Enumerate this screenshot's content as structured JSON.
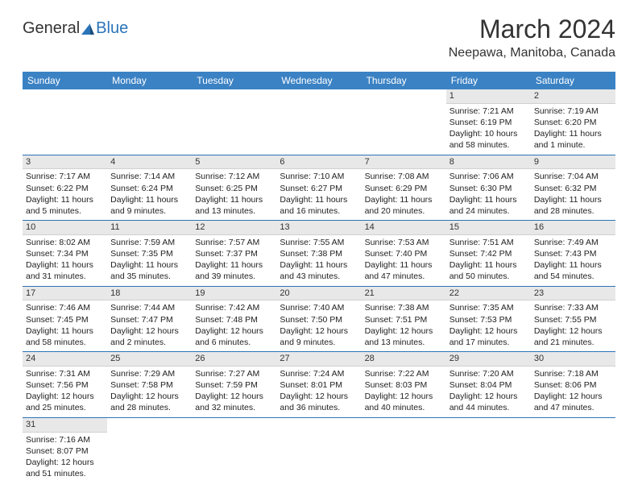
{
  "logo": {
    "general": "General",
    "blue": "Blue"
  },
  "title": "March 2024",
  "location": "Neepawa, Manitoba, Canada",
  "colors": {
    "headerBg": "#3b82c4",
    "headerText": "#ffffff",
    "dayNumBg": "#e8e8e8",
    "weekSep": "#2b74b8",
    "text": "#222222"
  },
  "dayNames": [
    "Sunday",
    "Monday",
    "Tuesday",
    "Wednesday",
    "Thursday",
    "Friday",
    "Saturday"
  ],
  "weeks": [
    [
      {
        "n": "",
        "lines": []
      },
      {
        "n": "",
        "lines": []
      },
      {
        "n": "",
        "lines": []
      },
      {
        "n": "",
        "lines": []
      },
      {
        "n": "",
        "lines": []
      },
      {
        "n": "1",
        "lines": [
          "Sunrise: 7:21 AM",
          "Sunset: 6:19 PM",
          "Daylight: 10 hours",
          "and 58 minutes."
        ]
      },
      {
        "n": "2",
        "lines": [
          "Sunrise: 7:19 AM",
          "Sunset: 6:20 PM",
          "Daylight: 11 hours",
          "and 1 minute."
        ]
      }
    ],
    [
      {
        "n": "3",
        "lines": [
          "Sunrise: 7:17 AM",
          "Sunset: 6:22 PM",
          "Daylight: 11 hours",
          "and 5 minutes."
        ]
      },
      {
        "n": "4",
        "lines": [
          "Sunrise: 7:14 AM",
          "Sunset: 6:24 PM",
          "Daylight: 11 hours",
          "and 9 minutes."
        ]
      },
      {
        "n": "5",
        "lines": [
          "Sunrise: 7:12 AM",
          "Sunset: 6:25 PM",
          "Daylight: 11 hours",
          "and 13 minutes."
        ]
      },
      {
        "n": "6",
        "lines": [
          "Sunrise: 7:10 AM",
          "Sunset: 6:27 PM",
          "Daylight: 11 hours",
          "and 16 minutes."
        ]
      },
      {
        "n": "7",
        "lines": [
          "Sunrise: 7:08 AM",
          "Sunset: 6:29 PM",
          "Daylight: 11 hours",
          "and 20 minutes."
        ]
      },
      {
        "n": "8",
        "lines": [
          "Sunrise: 7:06 AM",
          "Sunset: 6:30 PM",
          "Daylight: 11 hours",
          "and 24 minutes."
        ]
      },
      {
        "n": "9",
        "lines": [
          "Sunrise: 7:04 AM",
          "Sunset: 6:32 PM",
          "Daylight: 11 hours",
          "and 28 minutes."
        ]
      }
    ],
    [
      {
        "n": "10",
        "lines": [
          "Sunrise: 8:02 AM",
          "Sunset: 7:34 PM",
          "Daylight: 11 hours",
          "and 31 minutes."
        ]
      },
      {
        "n": "11",
        "lines": [
          "Sunrise: 7:59 AM",
          "Sunset: 7:35 PM",
          "Daylight: 11 hours",
          "and 35 minutes."
        ]
      },
      {
        "n": "12",
        "lines": [
          "Sunrise: 7:57 AM",
          "Sunset: 7:37 PM",
          "Daylight: 11 hours",
          "and 39 minutes."
        ]
      },
      {
        "n": "13",
        "lines": [
          "Sunrise: 7:55 AM",
          "Sunset: 7:38 PM",
          "Daylight: 11 hours",
          "and 43 minutes."
        ]
      },
      {
        "n": "14",
        "lines": [
          "Sunrise: 7:53 AM",
          "Sunset: 7:40 PM",
          "Daylight: 11 hours",
          "and 47 minutes."
        ]
      },
      {
        "n": "15",
        "lines": [
          "Sunrise: 7:51 AM",
          "Sunset: 7:42 PM",
          "Daylight: 11 hours",
          "and 50 minutes."
        ]
      },
      {
        "n": "16",
        "lines": [
          "Sunrise: 7:49 AM",
          "Sunset: 7:43 PM",
          "Daylight: 11 hours",
          "and 54 minutes."
        ]
      }
    ],
    [
      {
        "n": "17",
        "lines": [
          "Sunrise: 7:46 AM",
          "Sunset: 7:45 PM",
          "Daylight: 11 hours",
          "and 58 minutes."
        ]
      },
      {
        "n": "18",
        "lines": [
          "Sunrise: 7:44 AM",
          "Sunset: 7:47 PM",
          "Daylight: 12 hours",
          "and 2 minutes."
        ]
      },
      {
        "n": "19",
        "lines": [
          "Sunrise: 7:42 AM",
          "Sunset: 7:48 PM",
          "Daylight: 12 hours",
          "and 6 minutes."
        ]
      },
      {
        "n": "20",
        "lines": [
          "Sunrise: 7:40 AM",
          "Sunset: 7:50 PM",
          "Daylight: 12 hours",
          "and 9 minutes."
        ]
      },
      {
        "n": "21",
        "lines": [
          "Sunrise: 7:38 AM",
          "Sunset: 7:51 PM",
          "Daylight: 12 hours",
          "and 13 minutes."
        ]
      },
      {
        "n": "22",
        "lines": [
          "Sunrise: 7:35 AM",
          "Sunset: 7:53 PM",
          "Daylight: 12 hours",
          "and 17 minutes."
        ]
      },
      {
        "n": "23",
        "lines": [
          "Sunrise: 7:33 AM",
          "Sunset: 7:55 PM",
          "Daylight: 12 hours",
          "and 21 minutes."
        ]
      }
    ],
    [
      {
        "n": "24",
        "lines": [
          "Sunrise: 7:31 AM",
          "Sunset: 7:56 PM",
          "Daylight: 12 hours",
          "and 25 minutes."
        ]
      },
      {
        "n": "25",
        "lines": [
          "Sunrise: 7:29 AM",
          "Sunset: 7:58 PM",
          "Daylight: 12 hours",
          "and 28 minutes."
        ]
      },
      {
        "n": "26",
        "lines": [
          "Sunrise: 7:27 AM",
          "Sunset: 7:59 PM",
          "Daylight: 12 hours",
          "and 32 minutes."
        ]
      },
      {
        "n": "27",
        "lines": [
          "Sunrise: 7:24 AM",
          "Sunset: 8:01 PM",
          "Daylight: 12 hours",
          "and 36 minutes."
        ]
      },
      {
        "n": "28",
        "lines": [
          "Sunrise: 7:22 AM",
          "Sunset: 8:03 PM",
          "Daylight: 12 hours",
          "and 40 minutes."
        ]
      },
      {
        "n": "29",
        "lines": [
          "Sunrise: 7:20 AM",
          "Sunset: 8:04 PM",
          "Daylight: 12 hours",
          "and 44 minutes."
        ]
      },
      {
        "n": "30",
        "lines": [
          "Sunrise: 7:18 AM",
          "Sunset: 8:06 PM",
          "Daylight: 12 hours",
          "and 47 minutes."
        ]
      }
    ],
    [
      {
        "n": "31",
        "lines": [
          "Sunrise: 7:16 AM",
          "Sunset: 8:07 PM",
          "Daylight: 12 hours",
          "and 51 minutes."
        ]
      },
      {
        "n": "",
        "lines": []
      },
      {
        "n": "",
        "lines": []
      },
      {
        "n": "",
        "lines": []
      },
      {
        "n": "",
        "lines": []
      },
      {
        "n": "",
        "lines": []
      },
      {
        "n": "",
        "lines": []
      }
    ]
  ]
}
